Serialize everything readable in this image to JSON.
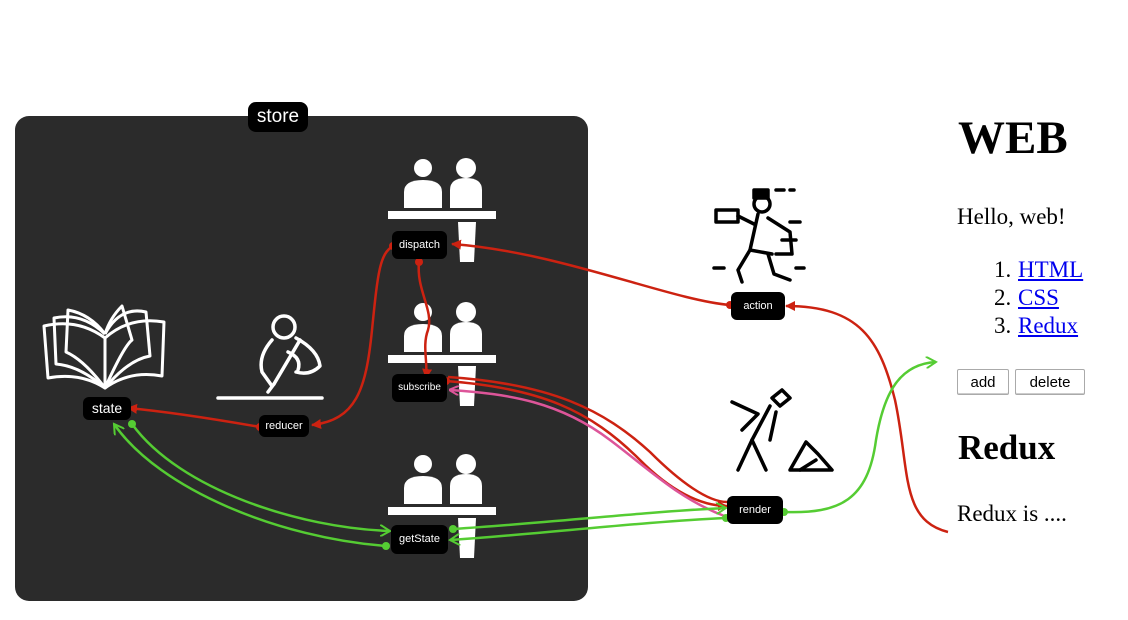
{
  "diagram": {
    "store_label": "store",
    "nodes": {
      "state": "state",
      "reducer": "reducer",
      "dispatch": "dispatch",
      "subscribe": "subscribe",
      "getstate": "getState",
      "action": "action",
      "render": "render"
    },
    "icons": [
      "book-icon",
      "writer-icon",
      "clerks-icon",
      "courier-icon",
      "worker-icon"
    ]
  },
  "colors": {
    "store_bg": "#2b2b2b",
    "dispatch_flow": "#cc2211",
    "getstate_flow": "#55cc33",
    "subscribe_flow": "#dd5599"
  },
  "web_page": {
    "title": "WEB",
    "greeting": "Hello, web!",
    "list": [
      {
        "num": "1.",
        "label": "HTML"
      },
      {
        "num": "2.",
        "label": "CSS"
      },
      {
        "num": "3.",
        "label": "Redux"
      }
    ],
    "buttons": {
      "add": "add",
      "delete": "delete"
    },
    "section_title": "Redux",
    "section_text": "Redux is ...."
  }
}
